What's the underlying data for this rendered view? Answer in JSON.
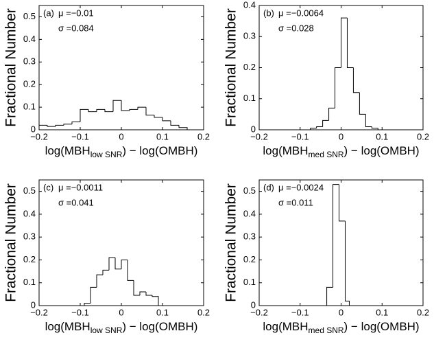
{
  "chart_data": [
    {
      "type": "histogram",
      "annotations": [
        "(a)",
        "μ =−0.01",
        "σ =0.084"
      ],
      "xlabel_parts": [
        "log(MBH",
        "low SNR",
        ") − log(OMBH)"
      ],
      "ylabel": "Fractional Number",
      "bins": [
        -0.2,
        -0.18,
        -0.16,
        -0.14,
        -0.12,
        -0.1,
        -0.08,
        -0.06,
        -0.04,
        -0.02,
        0,
        0.02,
        0.04,
        0.06,
        0.08,
        0.1,
        0.12,
        0.14,
        0.16
      ],
      "values": [
        0.02,
        0.015,
        0.02,
        0.025,
        0.035,
        0.09,
        0.08,
        0.09,
        0.08,
        0.13,
        0.085,
        0.09,
        0.1,
        0.065,
        0.055,
        0.04,
        0.02,
        0.01
      ],
      "color": "#000000",
      "xlim": [
        -0.2,
        0.2
      ],
      "ylim": [
        0,
        0.55
      ],
      "xticks": [
        {
          "value": -0.2,
          "label": "−0.2"
        },
        {
          "value": -0.1,
          "label": "−0.1"
        },
        0,
        0.1,
        0.2
      ],
      "yticks": [
        0,
        0.1,
        0.2,
        0.3,
        0.4,
        0.5
      ]
    },
    {
      "type": "histogram",
      "annotations": [
        "(b)",
        "μ =−0.0064",
        "σ =0.028"
      ],
      "xlabel_parts": [
        "log(MBH",
        "med SNR",
        ") − log(OMBH)"
      ],
      "ylabel": "Fractional Number",
      "bins": [
        -0.075,
        -0.06,
        -0.045,
        -0.03,
        -0.015,
        0,
        0.015,
        0.03,
        0.045,
        0.06,
        0.075,
        0.09
      ],
      "values": [
        0.005,
        0.01,
        0.03,
        0.07,
        0.2,
        0.36,
        0.2,
        0.12,
        0.05,
        0.01,
        0.005
      ],
      "color": "#000000",
      "xlim": [
        -0.2,
        0.2
      ],
      "ylim": [
        0,
        0.4
      ],
      "xticks": [
        {
          "value": -0.2,
          "label": "−0.2"
        },
        {
          "value": -0.1,
          "label": "−0.1"
        },
        0,
        0.1,
        0.2
      ],
      "yticks": [
        0,
        0.1,
        0.2,
        0.3,
        0.4
      ]
    },
    {
      "type": "histogram",
      "annotations": [
        "(c)",
        "μ =−0.0011",
        "σ =0.041"
      ],
      "xlabel_parts": [
        "log(MBH",
        "low SNR",
        ") − log(OMBH)"
      ],
      "ylabel": "Fractional Number",
      "bins": [
        -0.09,
        -0.075,
        -0.06,
        -0.045,
        -0.03,
        -0.015,
        0,
        0.015,
        0.03,
        0.045,
        0.06,
        0.075,
        0.09
      ],
      "values": [
        0.01,
        0.08,
        0.135,
        0.155,
        0.21,
        0.16,
        0.2,
        0.11,
        0.045,
        0.06,
        0.045,
        0.04
      ],
      "color": "#000000",
      "xlim": [
        -0.2,
        0.2
      ],
      "ylim": [
        0,
        0.55
      ],
      "xticks": [
        {
          "value": -0.2,
          "label": "−0.2"
        },
        {
          "value": -0.1,
          "label": "−0.1"
        },
        0,
        0.1,
        0.2
      ],
      "yticks": [
        0,
        0.1,
        0.2,
        0.3,
        0.4,
        0.5
      ]
    },
    {
      "type": "histogram",
      "annotations": [
        "(d)",
        "μ =−0.0024",
        "σ =0.011"
      ],
      "xlabel_parts": [
        "log(MBH",
        "med SNR",
        ") − log(OMBH)"
      ],
      "ylabel": "Fractional Number",
      "bins": [
        -0.035,
        -0.02,
        -0.005,
        0.01,
        0.02
      ],
      "values": [
        0.08,
        0.53,
        0.37,
        0.02
      ],
      "color": "#000000",
      "xlim": [
        -0.2,
        0.2
      ],
      "ylim": [
        0,
        0.55
      ],
      "xticks": [
        {
          "value": -0.2,
          "label": "−0.2"
        },
        {
          "value": -0.1,
          "label": "−0.1"
        },
        0,
        0.1,
        0.2
      ],
      "yticks": [
        0,
        0.1,
        0.2,
        0.3,
        0.4,
        0.5
      ]
    }
  ]
}
